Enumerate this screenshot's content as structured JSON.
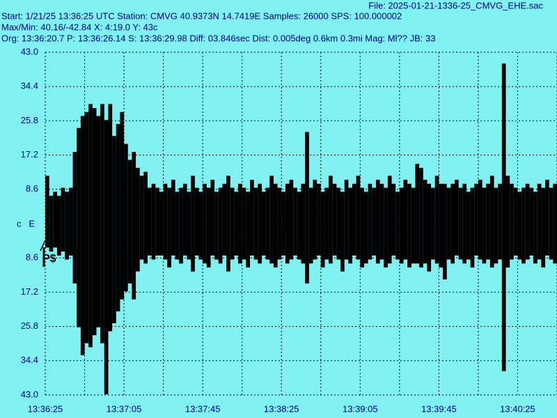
{
  "header": {
    "file": "File: 2025-01-21-1336-25_CMVG_EHE.sac",
    "line1": "Start: 1/21/25 13:36:25 UTC Station: CMVG 40.9373N 14.7419E Samples: 26000  SPS: 100.000002",
    "line2": "Max/Min: 40.16/-42.84 X: 4:19.0 Y: 43c",
    "line3": "Org: 13:36:20.7 P: 13:36:26.14 S: 13:36:29.98 Diff: 03.846sec Dist: 0.005deg 0.6km 0.3mi  Mag: Ml?? JB: 33"
  },
  "chart_data": {
    "type": "seismogram",
    "channel_label": "c   E",
    "phase_marker": "P$",
    "color": "#000000",
    "grid": true,
    "xlim": [
      0,
      260
    ],
    "xticks": [
      {
        "value": 0,
        "label": "13:36:25"
      },
      {
        "value": 40,
        "label": "13:37:05"
      },
      {
        "value": 80,
        "label": "13:37:45"
      },
      {
        "value": 120,
        "label": "13:38:25"
      },
      {
        "value": 160,
        "label": "13:39:05"
      },
      {
        "value": 200,
        "label": "13:39:45"
      },
      {
        "value": 240,
        "label": "13:40:25"
      }
    ],
    "xminor": [
      20,
      60,
      100,
      140,
      180,
      220,
      260
    ],
    "ylim": [
      -43,
      43
    ],
    "yticks": [
      {
        "value": 43,
        "label": "43.0"
      },
      34.4,
      25.8,
      17.2,
      8.6,
      {
        "value": -8.6,
        "label": "8.6"
      },
      {
        "value": -17.2,
        "label": "17.2"
      },
      {
        "value": -25.8,
        "label": "25.8"
      },
      {
        "value": -34.4,
        "label": "34.4"
      },
      {
        "value": -43,
        "label": "43.0"
      }
    ],
    "x_step": 2,
    "upper": [
      12,
      7,
      8,
      7,
      9,
      8,
      9,
      18,
      24,
      27,
      28,
      30,
      29,
      27,
      30,
      26,
      30,
      22,
      25,
      28,
      20,
      16,
      18,
      14,
      12,
      13,
      9,
      10,
      9,
      8,
      10,
      9,
      11,
      8,
      9,
      10,
      8,
      12,
      9,
      8,
      10,
      9,
      11,
      8,
      9,
      10,
      12,
      9,
      8,
      10,
      9,
      8,
      11,
      9,
      10,
      8,
      9,
      12,
      10,
      9,
      8,
      10,
      11,
      9,
      8,
      10,
      23,
      9,
      11,
      10,
      8,
      9,
      12,
      10,
      9,
      8,
      11,
      9,
      10,
      12,
      9,
      8,
      10,
      9,
      11,
      10,
      9,
      12,
      10,
      8,
      9,
      11,
      10,
      9,
      15,
      14,
      11,
      10,
      9,
      12,
      10,
      10,
      9,
      10,
      11,
      9,
      10,
      8,
      9,
      10,
      11,
      9,
      10,
      12,
      9,
      10,
      40.16,
      12,
      10,
      9,
      8,
      9,
      10,
      9,
      8,
      10,
      9,
      11,
      9,
      10,
      9
    ],
    "lower": [
      -6,
      -7,
      -6,
      -8,
      -7,
      -9,
      -8,
      -15,
      -26,
      -33,
      -30,
      -31,
      -28,
      -26,
      -30,
      -42.84,
      -27,
      -25,
      -22,
      -19,
      -17,
      -15,
      -19,
      -12,
      -9,
      -10,
      -8,
      -9,
      -8,
      -8,
      -9,
      -11,
      -8,
      -9,
      -10,
      -8,
      -9,
      -12,
      -8,
      -9,
      -10,
      -11,
      -8,
      -9,
      -10,
      -8,
      -12,
      -9,
      -8,
      -10,
      -9,
      -11,
      -8,
      -9,
      -10,
      -8,
      -9,
      -10,
      -11,
      -9,
      -8,
      -10,
      -9,
      -8,
      -9,
      -10,
      -15,
      -10,
      -9,
      -8,
      -11,
      -9,
      -10,
      -8,
      -9,
      -12,
      -9,
      -10,
      -8,
      -9,
      -11,
      -10,
      -9,
      -8,
      -10,
      -9,
      -11,
      -10,
      -8,
      -9,
      -10,
      -9,
      -11,
      -10,
      -10,
      -11,
      -10,
      -12,
      -9,
      -10,
      -11,
      -14,
      -9,
      -10,
      -8,
      -9,
      -10,
      -9,
      -11,
      -8,
      -9,
      -10,
      -9,
      -11,
      -10,
      -9,
      -37,
      -11,
      -9,
      -8,
      -9,
      -10,
      -9,
      -8,
      -10,
      -9,
      -11,
      -8,
      -9,
      -10,
      -8
    ]
  }
}
